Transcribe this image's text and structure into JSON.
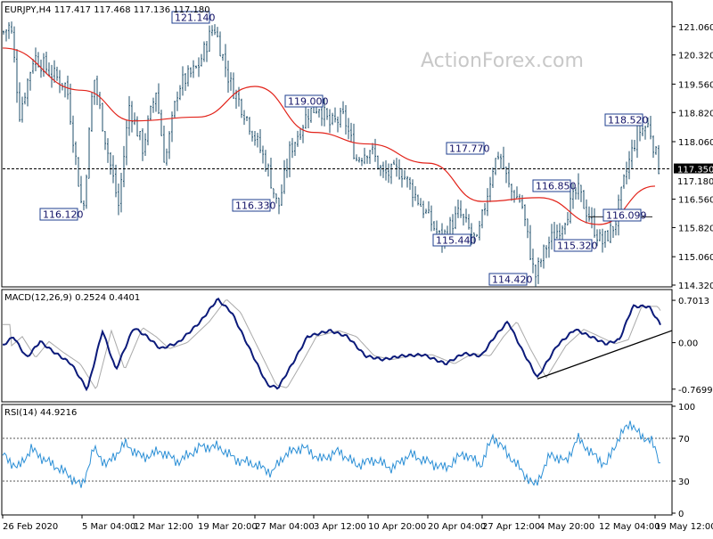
{
  "header": {
    "symbol_line": "EURJPY,H4  117.417 117.468 117.136 117.180",
    "watermark": "ActionForex.com"
  },
  "colors": {
    "candle": "#1f4f6b",
    "ma": "#e2231a",
    "macd": "#0b1a7a",
    "signal": "#aaaaaa",
    "rsi": "#2b8fd6",
    "label_border": "#1f3f8f",
    "label_text": "#111166",
    "grid": "#000000"
  },
  "chart_data": [
    {
      "panel": "price",
      "type": "candlestick",
      "ylim": [
        114.32,
        121.66
      ],
      "y_ticks": [
        "121.060",
        "120.320",
        "119.560",
        "118.820",
        "118.060",
        "117.350",
        "116.560",
        "115.820",
        "115.060",
        "114.320"
      ],
      "current_price_labels": [
        "117.350",
        "117.180"
      ],
      "moving_average": [
        {
          "date": "26 Feb 2020",
          "value": 120.5
        },
        {
          "date": "5 Mar 04:00",
          "value": 119.4
        },
        {
          "date": "12 Mar 12:00",
          "value": 118.6
        },
        {
          "date": "19 Mar 20:00",
          "value": 118.7
        },
        {
          "date": "27 Mar 04:00",
          "value": 119.5
        },
        {
          "date": "3 Apr 12:00",
          "value": 118.3
        },
        {
          "date": "10 Apr 20:00",
          "value": 118.0
        },
        {
          "date": "20 Apr 04:00",
          "value": 117.5
        },
        {
          "date": "27 Apr 12:00",
          "value": 116.5
        },
        {
          "date": "4 May 20:00",
          "value": 116.6
        },
        {
          "date": "12 May 04:00",
          "value": 115.9
        },
        {
          "date": "19 May 12:00",
          "value": 116.9
        }
      ],
      "annotations": [
        {
          "text": "121.140",
          "date": "19 Mar 20:00",
          "price": 121.14
        },
        {
          "text": "116.120",
          "date": "5 Mar 04:00",
          "price": 116.12
        },
        {
          "text": "119.000",
          "date": "3 Apr 12:00",
          "price": 119.0
        },
        {
          "text": "116.330",
          "date": "27 Mar 04:00",
          "price": 116.33
        },
        {
          "text": "117.770",
          "date": "27 Apr 12:00",
          "price": 117.77
        },
        {
          "text": "115.440",
          "date": "20 Apr 04:00",
          "price": 115.44
        },
        {
          "text": "114.420",
          "date": "4 May 20:00",
          "price": 114.42
        },
        {
          "text": "116.850",
          "date": "12 May 04:00",
          "price": 116.85
        },
        {
          "text": "115.320",
          "date": "12 May 04:00",
          "price": 115.32
        },
        {
          "text": "116.099",
          "date": "12 May 04:00",
          "price": 116.099
        },
        {
          "text": "118.520",
          "date": "19 May 12:00",
          "price": 118.52
        }
      ]
    },
    {
      "panel": "macd",
      "type": "line",
      "title": "MACD(12,26,9) 0.2524 0.4401",
      "y_ticks": [
        "0.7013",
        "0.00",
        "-0.7699"
      ],
      "ylim": [
        -0.7699,
        0.7013
      ],
      "trendline": true
    },
    {
      "panel": "rsi",
      "type": "line",
      "title": "RSI(14) 44.9216",
      "y_ticks": [
        "100",
        "70",
        "30",
        "0"
      ],
      "ylim": [
        0,
        100
      ],
      "levels": [
        70,
        30
      ]
    },
    {
      "panel": "time-axis",
      "x_labels": [
        "26 Feb 2020",
        "5 Mar 04:00",
        "12 Mar 12:00",
        "19 Mar 20:00",
        "27 Mar 04:00",
        "3 Apr 12:00",
        "10 Apr 20:00",
        "20 Apr 04:00",
        "27 Apr 12:00",
        "4 May 20:00",
        "12 May 04:00",
        "19 May 12:00"
      ]
    }
  ]
}
